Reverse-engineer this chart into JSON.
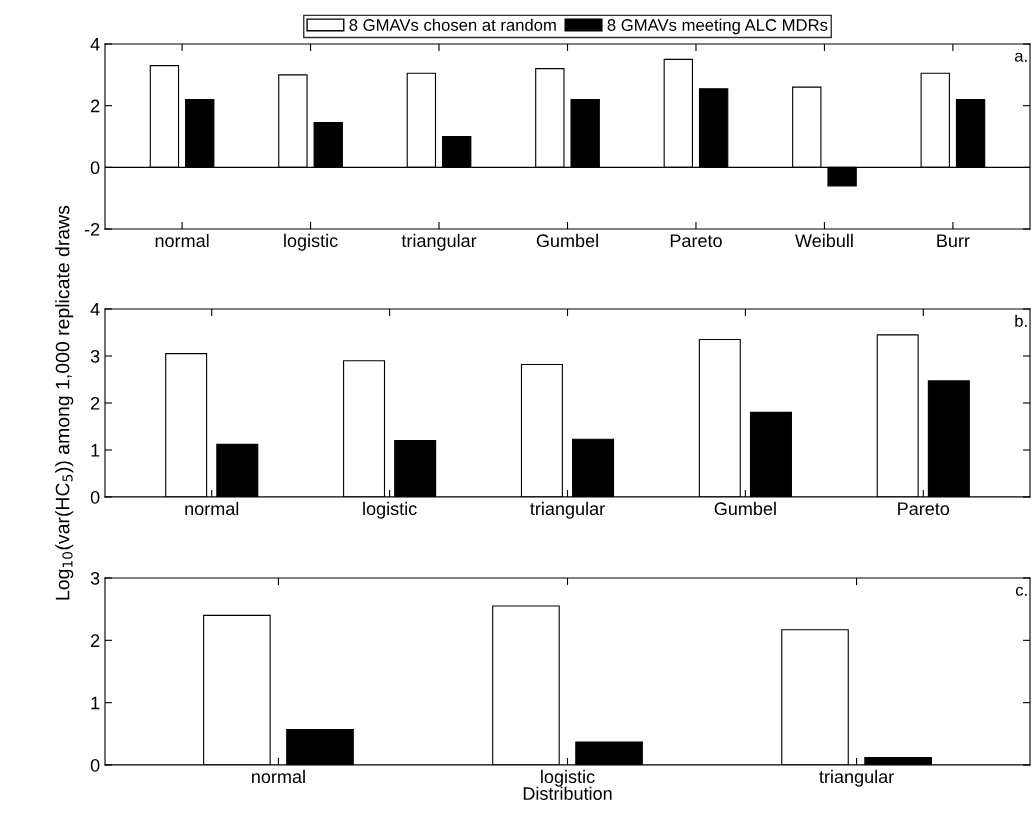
{
  "chart_data": [
    {
      "type": "bar",
      "categories": [
        "normal",
        "logistic",
        "triangular",
        "Gumbel",
        "Pareto",
        "Weibull",
        "Burr"
      ],
      "ylim": [
        -2,
        4
      ],
      "yticks": [
        -2,
        0,
        2,
        4
      ],
      "legend": "top",
      "annotations": [
        "a."
      ],
      "series": [
        {
          "name": "8 GMAVs chosen at random",
          "color": "#ffffff",
          "values": [
            3.3,
            3.0,
            3.05,
            3.2,
            3.5,
            2.6,
            3.05
          ]
        },
        {
          "name": "8 GMAVs meeting ALC MDRs",
          "color": "#000000",
          "values": [
            2.2,
            1.45,
            1.0,
            2.2,
            2.55,
            -0.6,
            2.2
          ]
        }
      ]
    },
    {
      "type": "bar",
      "categories": [
        "normal",
        "logistic",
        "triangular",
        "Gumbel",
        "Pareto"
      ],
      "ylim": [
        0,
        4
      ],
      "yticks": [
        0,
        1,
        2,
        3,
        4
      ],
      "ylabel": "Log$_{10}$(var(HC$_{5}$)) among 1,000 replicate draws",
      "annotations": [
        "b."
      ],
      "series": [
        {
          "color": "#ffffff",
          "values": [
            3.05,
            2.9,
            2.82,
            3.35,
            3.45
          ]
        },
        {
          "color": "#000000",
          "values": [
            1.12,
            1.2,
            1.23,
            1.8,
            2.47
          ]
        }
      ]
    },
    {
      "type": "bar",
      "categories": [
        "normal",
        "logistic",
        "triangular"
      ],
      "ylim": [
        0,
        3
      ],
      "yticks": [
        0,
        1,
        2,
        3
      ],
      "xlabel": "Distribution",
      "annotations": [
        "c."
      ],
      "series": [
        {
          "color": "#ffffff",
          "values": [
            2.4,
            2.55,
            2.17
          ]
        },
        {
          "color": "#000000",
          "values": [
            0.57,
            0.37,
            0.12
          ]
        }
      ]
    }
  ]
}
